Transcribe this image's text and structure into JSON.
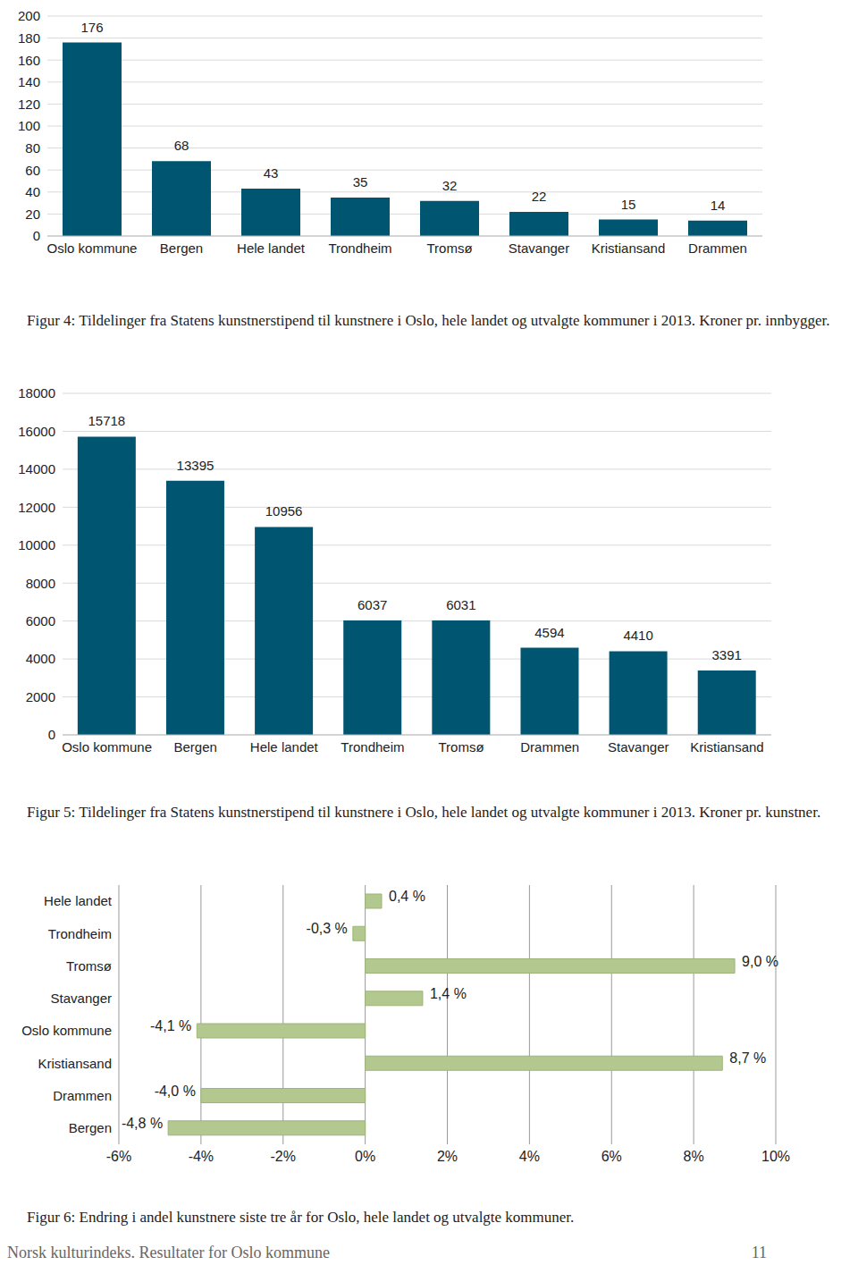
{
  "chart_data": [
    {
      "type": "bar",
      "title": "Figur 4: Tildelinger fra Statens kunstnerstipend til kunstnere i Oslo, hele landet og utvalgte kommuner i 2013. Kroner pr. innbygger.",
      "categories": [
        "Oslo kommune",
        "Bergen",
        "Hele landet",
        "Trondheim",
        "Tromsø",
        "Stavanger",
        "Kristiansand",
        "Drammen"
      ],
      "values": [
        176,
        68,
        43,
        35,
        32,
        22,
        15,
        14
      ],
      "color": "#005670",
      "ylim": [
        0,
        200
      ],
      "yticks": [
        0,
        20,
        40,
        60,
        80,
        100,
        120,
        140,
        160,
        180,
        200
      ],
      "grid": true,
      "data_labels": true
    },
    {
      "type": "bar",
      "title": "Figur 5: Tildelinger fra Statens kunstnerstipend til kunstnere i Oslo, hele landet og utvalgte kommuner i 2013. Kroner pr. kunstner.",
      "categories": [
        "Oslo kommune",
        "Bergen",
        "Hele landet",
        "Trondheim",
        "Tromsø",
        "Drammen",
        "Stavanger",
        "Kristiansand"
      ],
      "values": [
        15718,
        13395,
        10956,
        6037,
        6031,
        4594,
        4410,
        3391
      ],
      "color": "#005670",
      "ylim": [
        0,
        18000
      ],
      "yticks": [
        0,
        2000,
        4000,
        6000,
        8000,
        10000,
        12000,
        14000,
        16000,
        18000
      ],
      "grid": true,
      "data_labels": true
    },
    {
      "type": "bar",
      "orientation": "horizontal",
      "title": "Figur 6: Endring i andel kunstnere siste tre år for Oslo, hele landet og utvalgte kommuner.",
      "categories": [
        "Hele landet",
        "Trondheim",
        "Tromsø",
        "Stavanger",
        "Oslo kommune",
        "Kristiansand",
        "Drammen",
        "Bergen"
      ],
      "values": [
        0.4,
        -0.3,
        9.0,
        1.4,
        -4.1,
        8.7,
        -4.0,
        -4.8
      ],
      "value_labels": [
        "0,4 %",
        "-0,3 %",
        "9,0 %",
        "1,4 %",
        "-4,1 %",
        "8,7 %",
        "-4,0 %",
        "-4,8 %"
      ],
      "color": "#b3c88f",
      "xlim": [
        -6,
        10
      ],
      "xticks": [
        {
          "value": -6,
          "label": "-6%"
        },
        {
          "value": -4,
          "label": "-4%"
        },
        {
          "value": -2,
          "label": "-2%"
        },
        {
          "value": 0,
          "label": "0%"
        },
        {
          "value": 2,
          "label": "2%"
        },
        {
          "value": 4,
          "label": "4%"
        },
        {
          "value": 6,
          "label": "6%"
        },
        {
          "value": 8,
          "label": "8%"
        },
        {
          "value": 10,
          "label": "10%"
        }
      ],
      "grid": true,
      "data_labels": true
    }
  ],
  "footer": {
    "text": "Norsk kulturindeks. Resultater for Oslo kommune",
    "page": 11
  }
}
